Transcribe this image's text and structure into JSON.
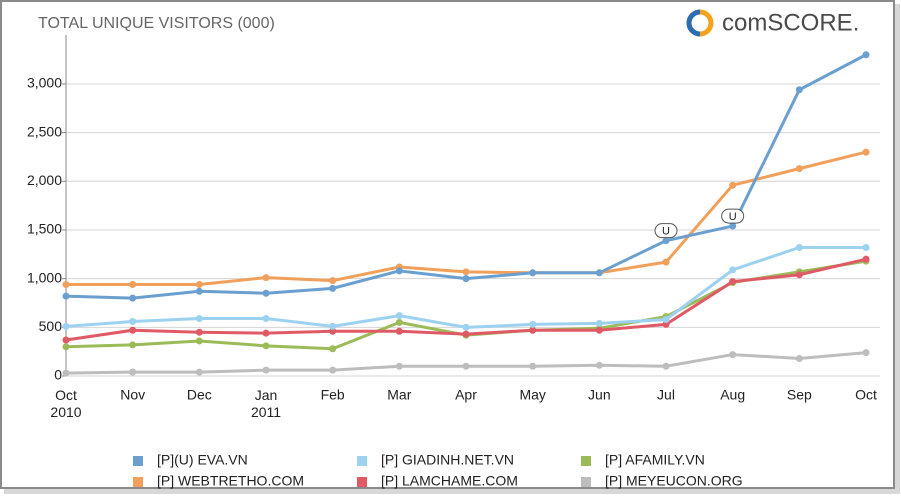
{
  "chart_data": {
    "type": "line",
    "title": "TOTAL UNIQUE VISITORS (000)",
    "brand": "comSCORE.",
    "categories": [
      "Oct 2010",
      "Nov",
      "Dec",
      "Jan 2011",
      "Feb",
      "Mar",
      "Apr",
      "May",
      "Jun",
      "Jul",
      "Aug",
      "Sep",
      "Oct"
    ],
    "series": [
      {
        "name": "[P](U) EVA.VN",
        "color": "#6a9fcf",
        "values": [
          820,
          800,
          870,
          850,
          900,
          1080,
          1000,
          1060,
          1060,
          1390,
          1540,
          2940,
          3300
        ]
      },
      {
        "name": "[P] WEBTRETHO.COM",
        "color": "#f0a05a",
        "values": [
          940,
          940,
          940,
          1010,
          980,
          1120,
          1070,
          1060,
          1060,
          1170,
          1960,
          2130,
          2300
        ]
      },
      {
        "name": "[P] GIADINH.NET.VN",
        "color": "#9dd1f0",
        "values": [
          510,
          560,
          590,
          590,
          510,
          620,
          500,
          530,
          540,
          580,
          1090,
          1320,
          1320
        ]
      },
      {
        "name": "[P] LAMCHAME.COM",
        "color": "#e05a66",
        "values": [
          370,
          470,
          450,
          440,
          460,
          460,
          430,
          470,
          470,
          530,
          970,
          1040,
          1200
        ]
      },
      {
        "name": "[P] AFAMILY.VN",
        "color": "#9bbb59",
        "values": [
          300,
          320,
          360,
          310,
          280,
          550,
          420,
          470,
          490,
          610,
          960,
          1070,
          1180
        ]
      },
      {
        "name": "[P] MEYEUCON.ORG",
        "color": "#bdbdbd",
        "values": [
          30,
          40,
          40,
          60,
          60,
          100,
          100,
          100,
          110,
          100,
          220,
          180,
          240
        ]
      }
    ],
    "annotations": [
      {
        "text": "U",
        "series": 0,
        "index": 9
      },
      {
        "text": "U",
        "series": 0,
        "index": 10
      }
    ],
    "ylim": [
      0,
      3400
    ],
    "yticks": [
      0,
      500,
      {
        "value": 1000,
        "label": "1,000"
      },
      {
        "value": 1500,
        "label": "1,500"
      },
      {
        "value": 2000,
        "label": "2,000"
      },
      {
        "value": 2500,
        "label": "2,500"
      },
      {
        "value": 3000,
        "label": "3,000"
      }
    ],
    "grid": true
  }
}
